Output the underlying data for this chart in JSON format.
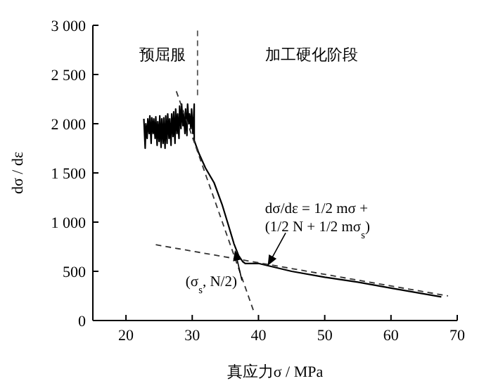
{
  "chart_data": {
    "type": "line",
    "xlabel": "真应力σ  / MPa",
    "ylabel": "dσ / dε",
    "xlim": [
      15,
      70
    ],
    "ylim": [
      0,
      3000
    ],
    "xticks": [
      20,
      30,
      40,
      50,
      60,
      70
    ],
    "yticks": [
      0,
      500,
      {
        "value": 1000,
        "label": "1 000"
      },
      {
        "value": 1500,
        "label": "1 500"
      },
      {
        "value": 2000,
        "label": "2 000"
      },
      {
        "value": 2500,
        "label": "2 500"
      },
      {
        "value": 3000,
        "label": "3 000"
      }
    ],
    "grid": false,
    "marker": "none",
    "series": [
      {
        "color": "#000000",
        "line_style": "solid",
        "x": [
          22.7,
          22.9,
          23.0,
          23.2,
          23.3,
          23.5,
          23.6,
          23.8,
          23.9,
          24.1,
          24.2,
          24.4,
          24.5,
          24.7,
          24.8,
          25.0,
          25.1,
          25.3,
          25.4,
          25.6,
          25.7,
          25.9,
          26.0,
          26.2,
          26.3,
          26.5,
          26.6,
          26.8,
          26.9,
          27.1,
          27.2,
          27.4,
          27.5,
          27.7,
          27.8,
          28.0,
          28.1,
          28.3,
          28.4,
          28.6,
          28.7,
          28.9,
          29.0,
          29.2,
          29.3,
          29.5,
          29.6,
          29.8,
          29.9,
          30.1,
          30.3,
          30.3,
          31.0,
          32.0,
          33.3,
          34.5,
          35.5,
          36.3,
          37.0,
          37.6,
          38.0,
          40,
          45,
          50,
          55,
          60,
          65,
          67.6
        ],
        "values": [
          2050,
          1750,
          2000,
          1850,
          2050,
          1900,
          2080,
          1800,
          2060,
          1900,
          2050,
          1850,
          2070,
          1780,
          2020,
          1820,
          2080,
          1760,
          2050,
          1800,
          2060,
          1750,
          2080,
          1800,
          2100,
          1850,
          2050,
          1780,
          2100,
          1870,
          2120,
          1800,
          2150,
          1900,
          2100,
          1850,
          2180,
          1950,
          2200,
          1980,
          2100,
          1900,
          2150,
          1880,
          2200,
          2000,
          2100,
          1950,
          2150,
          1900,
          2200,
          1830,
          1700,
          1550,
          1400,
          1180,
          960,
          780,
          660,
          600,
          580,
          580,
          500,
          440,
          390,
          330,
          270,
          240
        ]
      },
      {
        "color": "#333333",
        "line_style": "dashed",
        "x": [
          24.5,
          68.6
        ],
        "values": [
          770,
          250
        ]
      },
      {
        "color": "#333333",
        "line_style": "dashed",
        "x": [
          27.6,
          39.3
        ],
        "values": [
          2330,
          90
        ]
      },
      {
        "color": "#555555",
        "line_style": "dashed",
        "x": [
          30.8,
          30.8
        ],
        "values": [
          2290,
          2950
        ]
      }
    ],
    "annotations": [
      "预屈服",
      "加工硬化阶段",
      {
        "text": "dσ/dε = 1/2 mσ + (1/2 N + 1/2 mσ$_{s}$)",
        "x": 41.5,
        "y": 570
      },
      {
        "text": "(σ$_{s}$, N/2)",
        "x": 36.5,
        "y": 700
      }
    ]
  }
}
